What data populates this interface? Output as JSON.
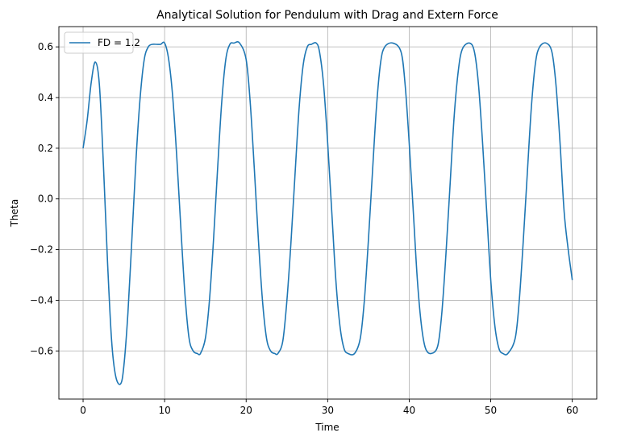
{
  "chart_data": {
    "type": "line",
    "title": "Analytical Solution for Pendulum with Drag and Extern Force",
    "xlabel": "Time",
    "ylabel": "Theta",
    "xlim": [
      -2.97,
      63
    ],
    "ylim": [
      -0.79,
      0.68
    ],
    "xticks": [
      0,
      10,
      20,
      30,
      40,
      50,
      60
    ],
    "xtick_labels": [
      "0",
      "10",
      "20",
      "30",
      "40",
      "50",
      "60"
    ],
    "yticks": [
      -0.6,
      -0.4,
      -0.2,
      0.0,
      0.2,
      0.4,
      0.6
    ],
    "ytick_labels": [
      "−0.6",
      "−0.4",
      "−0.2",
      "0.0",
      "0.2",
      "0.4",
      "0.6"
    ],
    "grid": true,
    "legend_placement": "top-left",
    "series": [
      {
        "name": "FD = 1.2",
        "color": "#1f77b4",
        "x": [
          0,
          0.5,
          1.0,
          1.5,
          2.0,
          2.5,
          3.0,
          3.5,
          4.0,
          4.6,
          5.0,
          5.5,
          6.0,
          6.5,
          7.0,
          7.5,
          8.0,
          8.5,
          9.0,
          9.5,
          10.0,
          10.5,
          11.0,
          11.5,
          12.0,
          12.5,
          13.0,
          13.5,
          14.0,
          14.4,
          15.0,
          15.5,
          16.0,
          16.5,
          17.0,
          17.5,
          18.0,
          18.5,
          19.2,
          20.0,
          20.5,
          21.0,
          21.5,
          22.0,
          22.5,
          23.0,
          23.5,
          23.9,
          24.5,
          25.0,
          25.5,
          26.0,
          26.5,
          27.0,
          27.5,
          28.0,
          28.6,
          29.0,
          29.5,
          30.0,
          30.5,
          31.0,
          31.5,
          32.0,
          32.5,
          33.3,
          34.0,
          34.5,
          35.0,
          35.5,
          36.0,
          36.5,
          37.0,
          38.0,
          39.0,
          39.5,
          40.0,
          40.5,
          41.0,
          41.5,
          42.0,
          42.7,
          43.5,
          44.0,
          44.5,
          45.0,
          45.5,
          46.0,
          46.5,
          47.4,
          48.0,
          48.5,
          49.0,
          49.5,
          50.0,
          50.5,
          51.0,
          51.5,
          52.1,
          53.0,
          53.5,
          54.0,
          54.5,
          55.0,
          55.5,
          56.0,
          56.8,
          57.5,
          58.0,
          58.5,
          59.0,
          59.5,
          60.0
        ],
        "y": [
          0.2,
          0.31,
          0.46,
          0.54,
          0.45,
          0.13,
          -0.25,
          -0.56,
          -0.7,
          -0.73,
          -0.66,
          -0.45,
          -0.15,
          0.16,
          0.4,
          0.55,
          0.6,
          0.61,
          0.61,
          0.61,
          0.615,
          0.55,
          0.4,
          0.16,
          -0.12,
          -0.38,
          -0.55,
          -0.6,
          -0.61,
          -0.61,
          -0.55,
          -0.4,
          -0.16,
          0.12,
          0.38,
          0.55,
          0.61,
          0.615,
          0.615,
          0.55,
          0.38,
          0.12,
          -0.16,
          -0.4,
          -0.55,
          -0.6,
          -0.61,
          -0.61,
          -0.56,
          -0.4,
          -0.17,
          0.1,
          0.36,
          0.53,
          0.6,
          0.61,
          0.615,
          0.58,
          0.45,
          0.22,
          -0.05,
          -0.32,
          -0.5,
          -0.59,
          -0.61,
          -0.61,
          -0.55,
          -0.4,
          -0.16,
          0.11,
          0.37,
          0.54,
          0.6,
          0.615,
          0.58,
          0.45,
          0.22,
          -0.05,
          -0.32,
          -0.5,
          -0.59,
          -0.61,
          -0.58,
          -0.45,
          -0.22,
          0.05,
          0.32,
          0.5,
          0.59,
          0.615,
          0.58,
          0.45,
          0.22,
          -0.05,
          -0.32,
          -0.5,
          -0.59,
          -0.61,
          -0.61,
          -0.55,
          -0.4,
          -0.16,
          0.11,
          0.37,
          0.54,
          0.6,
          0.615,
          0.58,
          0.45,
          0.22,
          -0.05,
          -0.2,
          -0.32
        ]
      }
    ]
  }
}
